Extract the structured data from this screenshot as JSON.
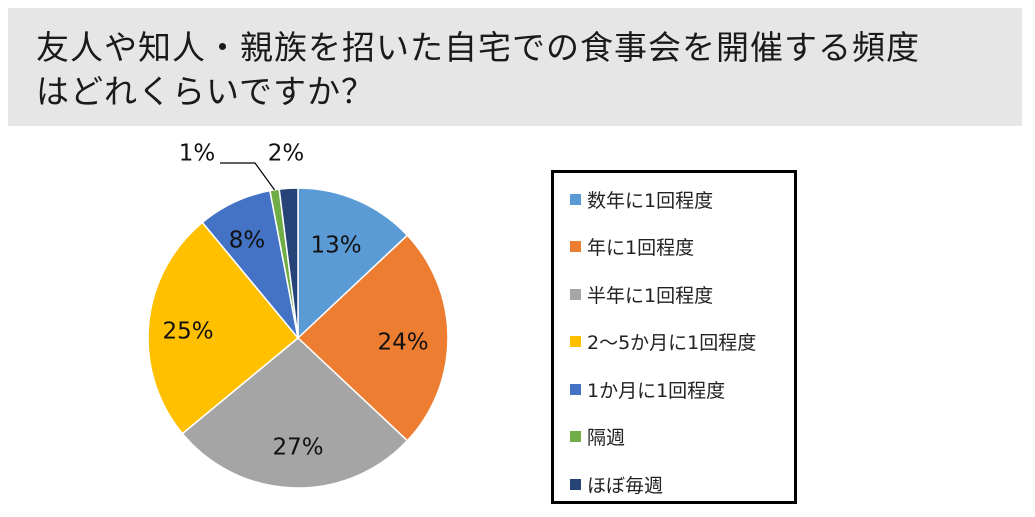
{
  "title": {
    "line1": "友人や知人・親族を招いた自宅での食事会を開催する頻度",
    "line2": "はどれくらいですか？"
  },
  "chart_data": {
    "type": "pie",
    "categories": [
      "数年に1回程度",
      "年に1回程度",
      "半年に1回程度",
      "2〜5か月に1回程度",
      "1か月に1回程度",
      "隔週",
      "ほぼ毎週"
    ],
    "values": [
      13,
      24,
      27,
      25,
      8,
      1,
      2
    ],
    "labels": [
      "13%",
      "24%",
      "27%",
      "25%",
      "8%",
      "1%",
      "2%"
    ],
    "colors": [
      "#5b9bd5",
      "#ed7d31",
      "#a5a5a5",
      "#ffc000",
      "#4472c4",
      "#70ad47",
      "#264478"
    ],
    "legend_position": "right"
  }
}
